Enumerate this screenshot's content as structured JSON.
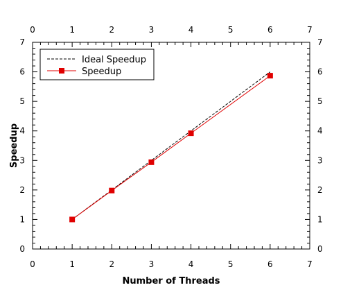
{
  "chart_data": {
    "type": "line",
    "title": "",
    "xlabel": "Number of Threads",
    "ylabel": "Speedup",
    "xlim": [
      0,
      7
    ],
    "ylim": [
      0,
      7
    ],
    "xticks": [
      "0",
      "1",
      "2",
      "3",
      "4",
      "5",
      "6",
      "7"
    ],
    "yticks": [
      "0",
      "1",
      "2",
      "3",
      "4",
      "5",
      "6",
      "7"
    ],
    "grid": false,
    "legend_position": "top-left",
    "series": [
      {
        "name": "Ideal Speedup",
        "x": [
          1,
          2,
          3,
          4,
          6
        ],
        "y": [
          1,
          2,
          3,
          4,
          6
        ],
        "color": "#000000",
        "style": "dashed",
        "marker": "none"
      },
      {
        "name": "Speedup",
        "x": [
          1,
          2,
          3,
          4,
          6
        ],
        "y": [
          1.0,
          1.98,
          2.94,
          3.92,
          5.87
        ],
        "color": "#e00000",
        "style": "solid",
        "marker": "square"
      }
    ]
  }
}
